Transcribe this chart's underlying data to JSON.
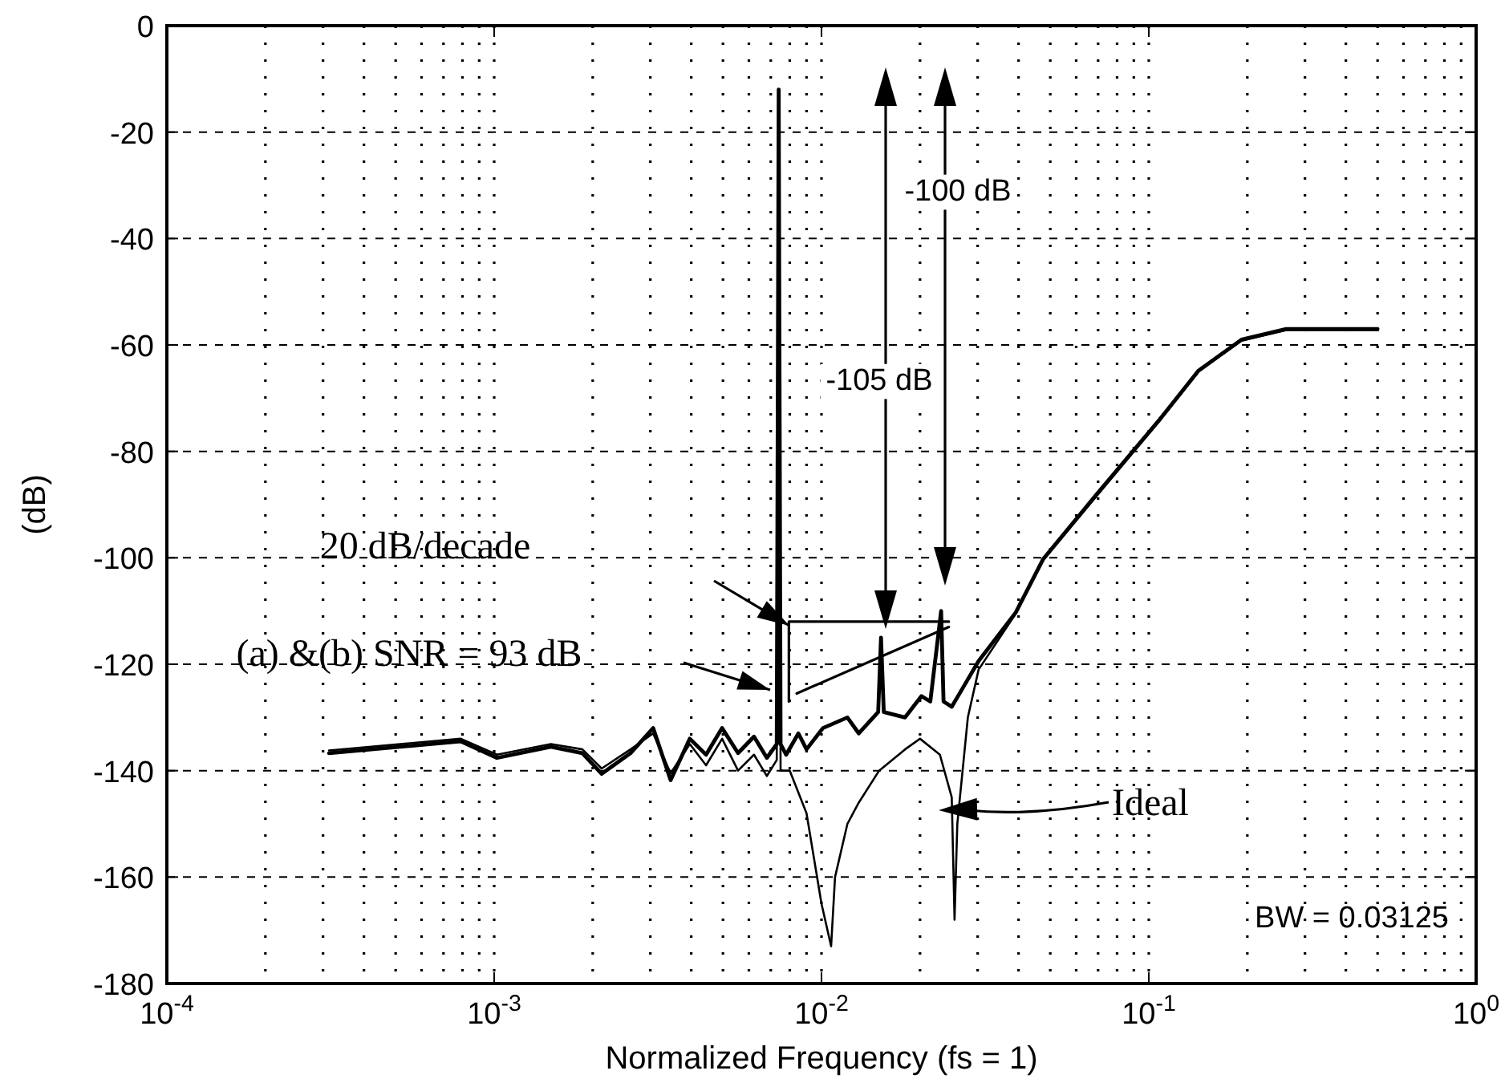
{
  "chart_data": {
    "type": "line",
    "xlabel": "Normalized Frequency (fs = 1)",
    "ylabel": "(dB)",
    "log": "x",
    "grid": true,
    "xlim": [
      0.0001,
      1
    ],
    "ylim": [
      -180,
      0
    ],
    "xticks": [
      {
        "value": 0.0001,
        "label": "10$^{-4}$"
      },
      {
        "value": 0.001,
        "label": "10$^{-3}$"
      },
      {
        "value": 0.01,
        "label": "10$^{-2}$"
      },
      {
        "value": 0.1,
        "label": "10$^{-1}$"
      },
      {
        "value": 1,
        "label": "10$^{0}$"
      }
    ],
    "yticks": [
      -180,
      -160,
      -140,
      -120,
      -100,
      -80,
      -60,
      -40,
      -20,
      0
    ],
    "series": [
      {
        "color": "#000000",
        "x": [
          0.000313,
          0.00079,
          0.00102,
          0.00149,
          0.00186,
          0.00213,
          0.00261,
          0.00306,
          0.00346,
          0.00396,
          0.00444,
          0.00497,
          0.00556,
          0.00622,
          0.00681,
          0.0073,
          0.0074,
          0.0075,
          0.0078,
          0.0085,
          0.009,
          0.0101,
          0.012,
          0.013,
          0.0149,
          0.0152,
          0.0155,
          0.018,
          0.0202,
          0.0215,
          0.0232,
          0.0236,
          0.025,
          0.027,
          0.0302,
          0.0392,
          0.0475,
          0.069,
          0.108,
          0.142,
          0.192,
          0.263,
          0.5
        ],
        "values": [
          -136.7,
          -134.5,
          -137.6,
          -135.5,
          -136.7,
          -140.6,
          -136.7,
          -132,
          -141.8,
          -134,
          -137,
          -132,
          -136.7,
          -133.6,
          -137.6,
          -135,
          -12,
          -135,
          -137,
          -133,
          -136,
          -132,
          -130,
          -133,
          -129,
          -115,
          -129,
          -130,
          -126,
          -127,
          -110,
          -127,
          -128,
          -124.5,
          -119.4,
          -110.3,
          -100.3,
          -88.2,
          -74,
          -64.8,
          -59,
          -57,
          -57
        ]
      },
      {
        "color": "#000000",
        "x": [
          0.000313,
          0.00079,
          0.00102,
          0.00149,
          0.00186,
          0.00213,
          0.00261,
          0.00306,
          0.00346,
          0.00396,
          0.00444,
          0.00497,
          0.00556,
          0.00622,
          0.00681,
          0.0073,
          0.0074,
          0.0075,
          0.008,
          0.009,
          0.01,
          0.0107,
          0.011,
          0.012,
          0.013,
          0.015,
          0.018,
          0.02,
          0.023,
          0.025,
          0.0255,
          0.026,
          0.028,
          0.0302,
          0.0392,
          0.0475,
          0.069,
          0.108,
          0.142,
          0.192,
          0.263,
          0.5
        ],
        "values": [
          -136.2,
          -134,
          -137,
          -135,
          -136,
          -139.6,
          -136,
          -133,
          -140.5,
          -135,
          -139,
          -134,
          -140,
          -137,
          -141,
          -138,
          -12,
          -140,
          -140,
          -148,
          -165,
          -173,
          -160,
          -150,
          -146,
          -140,
          -136,
          -134,
          -137,
          -145,
          -168,
          -150,
          -130,
          -121,
          -110.5,
          -100.5,
          -88.5,
          -74.2,
          -65,
          -59.2,
          -57.2,
          -57.2
        ]
      },
      {
        "color": "#000000",
        "x": [
          0.00795,
          0.00795,
          0.0245
        ],
        "values": [
          -127,
          -112,
          -112
        ]
      },
      {
        "color": "#000000",
        "x": [
          0.0084,
          0.0245
        ],
        "values": [
          -125.5,
          -113
        ]
      }
    ],
    "annotations": [
      "20 dB/decade",
      "(a) &(b) SNR = 93 dB",
      "-105 dB",
      "-100 dB",
      "Ideal",
      "BW = 0.03125"
    ]
  }
}
